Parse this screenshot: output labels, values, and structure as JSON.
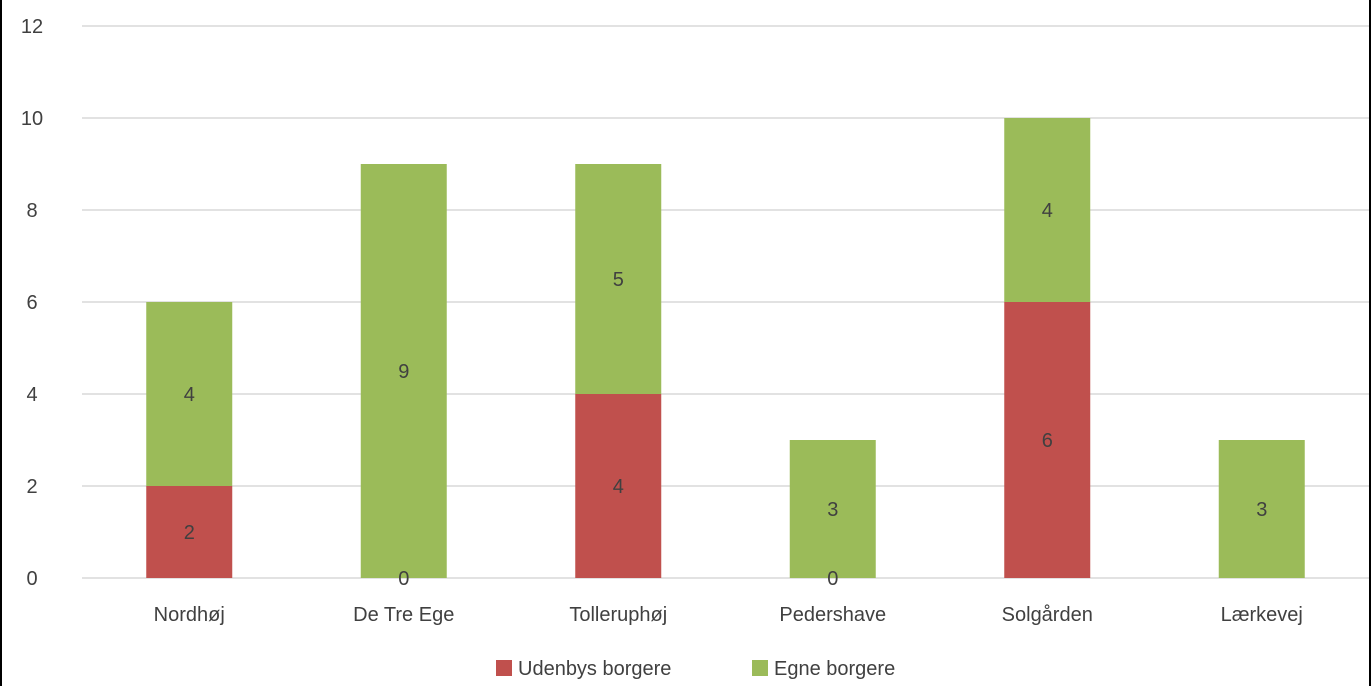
{
  "chart_data": {
    "type": "bar",
    "stacked": true,
    "categories": [
      "Nordhøj",
      "De Tre Ege",
      "Tolleruphøj",
      "Pedershave",
      "Solgården",
      "Lærkevej"
    ],
    "series": [
      {
        "name": "Udenbys borgere",
        "color": "#C0504D",
        "values": [
          2,
          0,
          4,
          0,
          6,
          0
        ]
      },
      {
        "name": "Egne borgere",
        "color": "#9BBB59",
        "values": [
          4,
          9,
          5,
          3,
          4,
          3
        ]
      }
    ],
    "data_labels": {
      "Udenbys borgere": [
        "2",
        "0",
        "4",
        "0",
        "6",
        ""
      ],
      "Egne borgere": [
        "4",
        "9",
        "5",
        "3",
        "4",
        "3"
      ]
    },
    "ylim": [
      0,
      12
    ],
    "yticks": [
      0,
      2,
      4,
      6,
      8,
      10,
      12
    ],
    "grid": true,
    "legend": "bottom",
    "title": "",
    "xlabel": "",
    "ylabel": ""
  }
}
